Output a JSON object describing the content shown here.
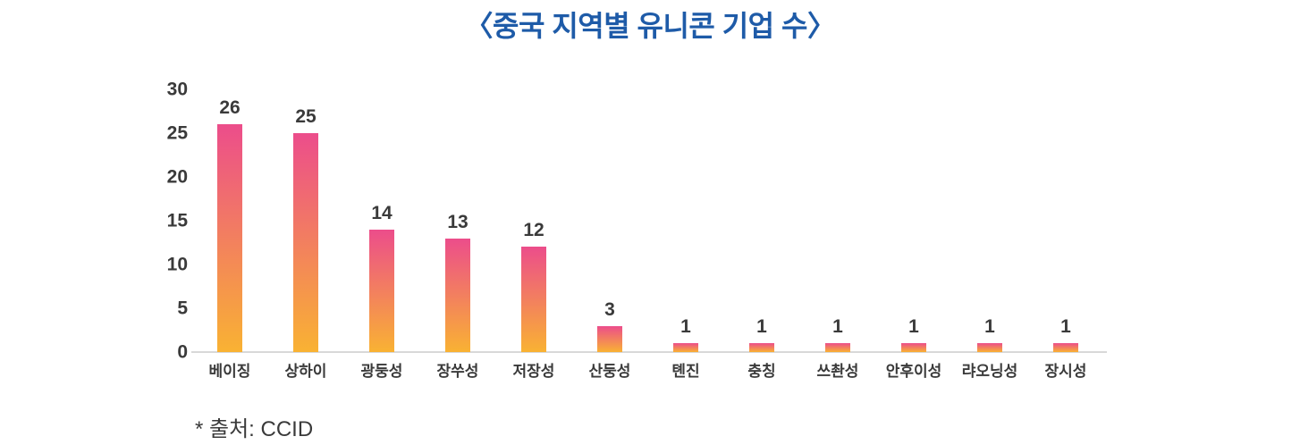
{
  "title": "〈중국 지역별 유니콘 기업 수〉",
  "source_note": "* 출처: CCID",
  "colors": {
    "title": "#1e5ba8",
    "bar_gradient_top": "#ec4d8b",
    "bar_gradient_bottom": "#f9b233",
    "axis_text": "#3a3a3a",
    "baseline": "#d8d8d8"
  },
  "chart_data": {
    "type": "bar",
    "title": "〈중국 지역별 유니콘 기업 수〉",
    "categories": [
      "베이징",
      "상하이",
      "광둥성",
      "장쑤성",
      "저장성",
      "산둥성",
      "톈진",
      "충칭",
      "쓰촨성",
      "안후이성",
      "랴오닝성",
      "장시성"
    ],
    "values": [
      26,
      25,
      14,
      13,
      12,
      3,
      1,
      1,
      1,
      1,
      1,
      1
    ],
    "xlabel": "",
    "ylabel": "",
    "ylim": [
      0,
      30
    ],
    "yticks": [
      0,
      5,
      10,
      15,
      20,
      25,
      30
    ],
    "grid": false,
    "legend": false,
    "data_labels": true,
    "source": "* 출처: CCID"
  }
}
